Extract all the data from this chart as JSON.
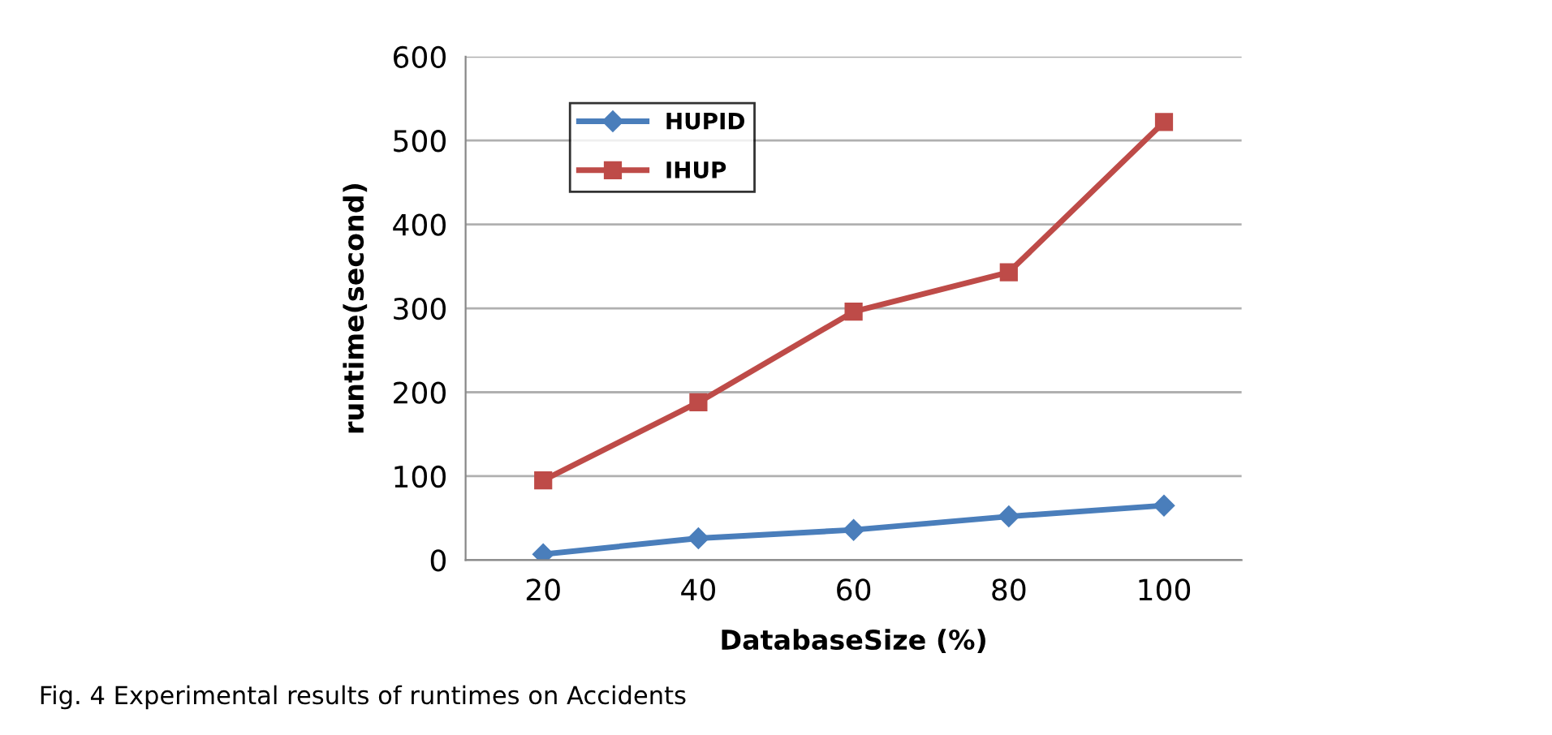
{
  "chart_data": {
    "type": "line",
    "categories": [
      "20",
      "40",
      "60",
      "80",
      "100"
    ],
    "series": [
      {
        "name": "HUPID",
        "color": "#4a7ebb",
        "marker": "diamond",
        "values": [
          7,
          26,
          36,
          52,
          65
        ]
      },
      {
        "name": "IHUP",
        "color": "#be4b48",
        "marker": "square",
        "values": [
          95,
          188,
          296,
          343,
          522
        ]
      }
    ],
    "xlabel": "DatabaseSize (%)",
    "ylabel": "runtime(second)",
    "ylim": [
      0,
      600
    ],
    "yticks": [
      0,
      100,
      200,
      300,
      400,
      500,
      600
    ],
    "grid": "y",
    "legend": "top left",
    "annotations": [
      "Fig. 4 Experimental results of runtimes on Accidents"
    ]
  }
}
